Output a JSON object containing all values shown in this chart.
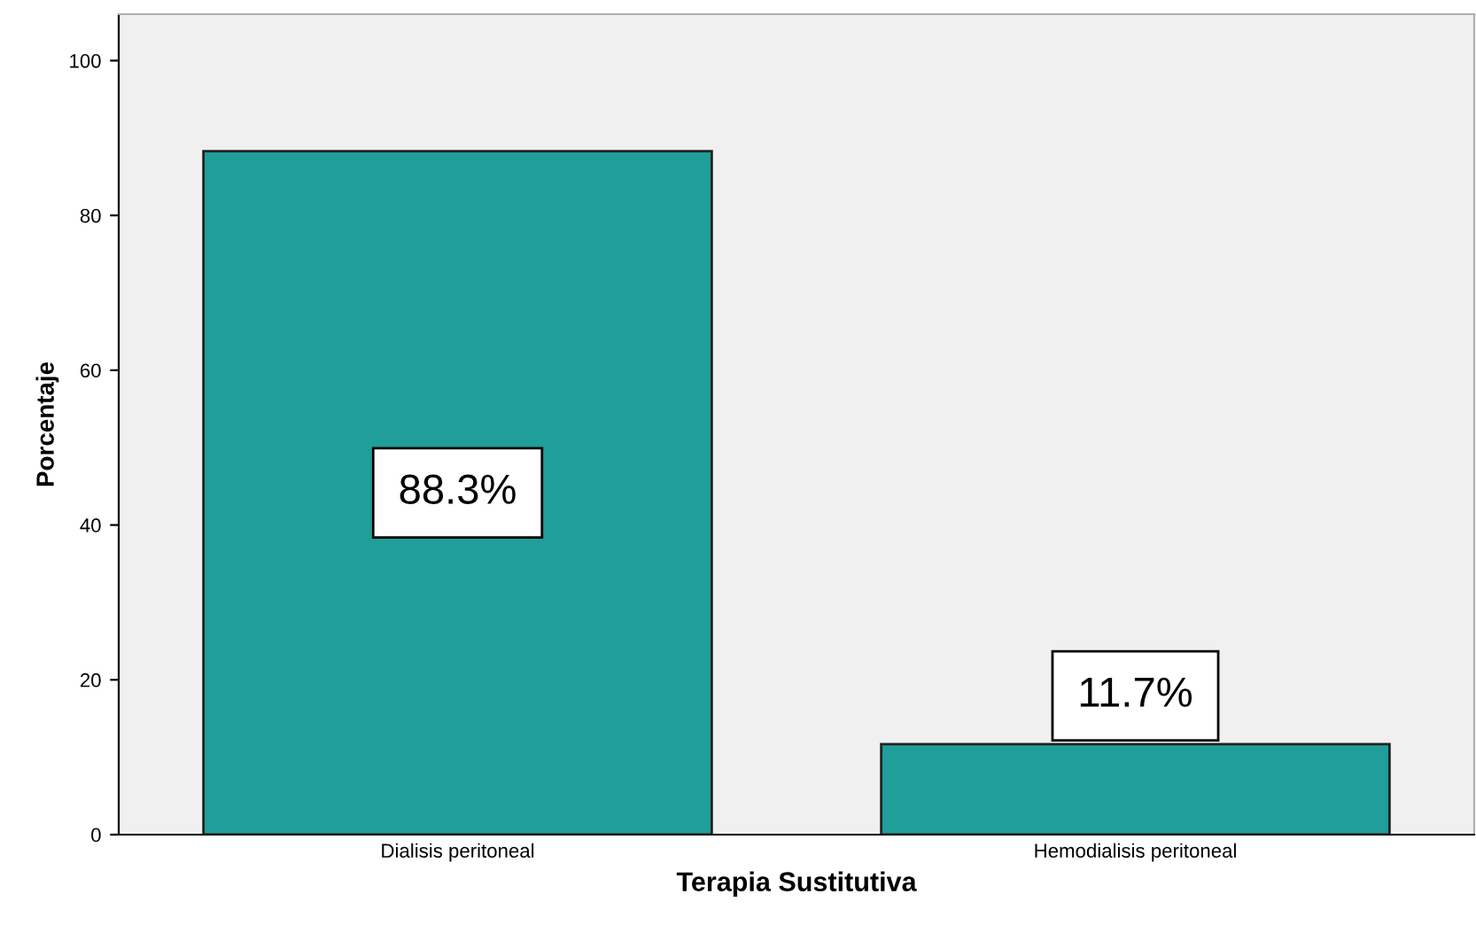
{
  "chart_data": {
    "type": "bar",
    "xlabel": "Terapia Sustitutiva",
    "ylabel": "Porcentaje",
    "categories": [
      "Dialisis peritoneal",
      "Hemodialisis peritoneal"
    ],
    "values": [
      88.3,
      11.7
    ],
    "color": "#1f9e9a",
    "value_labels": [
      "88.3%",
      "11.7%"
    ],
    "ylim": [
      0,
      106
    ],
    "yticks": [
      0,
      20,
      40,
      60,
      80,
      100
    ],
    "grid": false
  }
}
